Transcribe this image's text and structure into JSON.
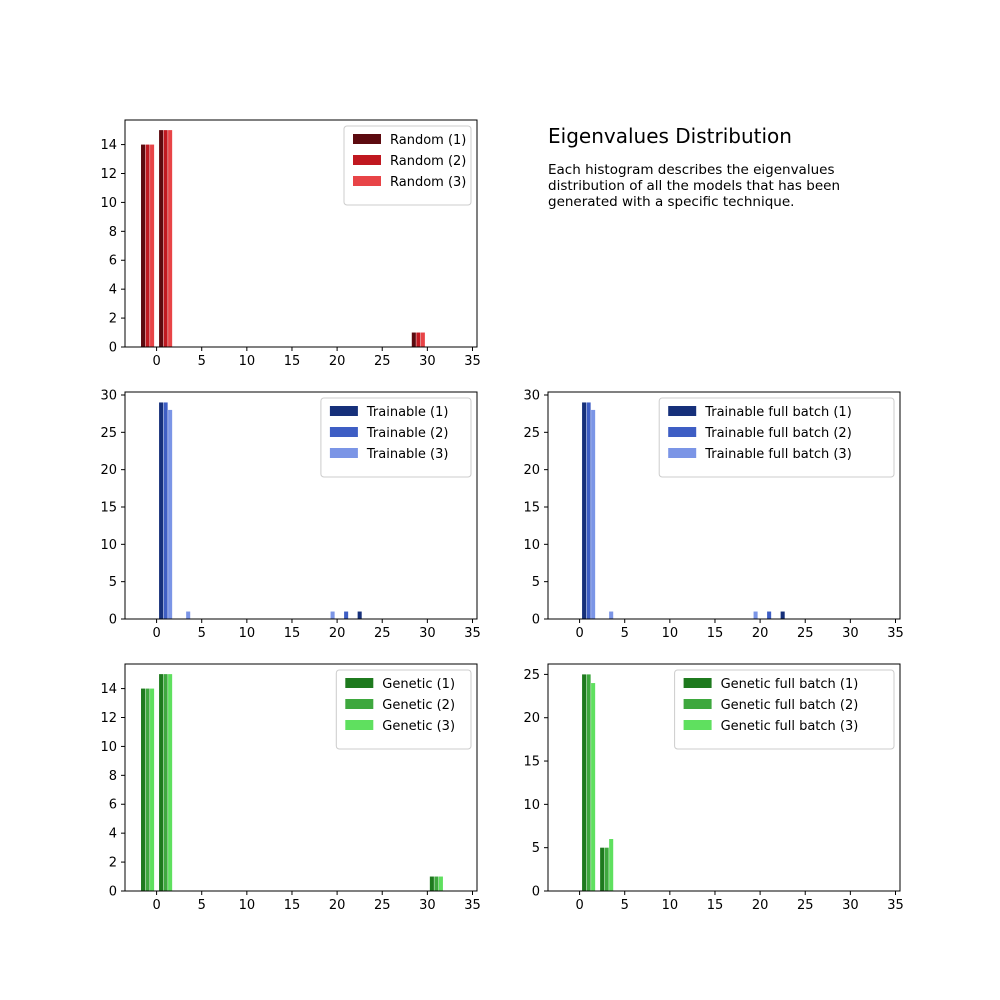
{
  "figure": {
    "title": "Eigenvalues Distribution",
    "description": "Each histogram describes the eigenvalues distribution of all the models that has been generated with a specific technique."
  },
  "chart_data": [
    {
      "type": "bar",
      "id": "random",
      "xlim": [
        -3.5,
        35.5
      ],
      "ylim": [
        0,
        15.7
      ],
      "xticks": [
        0,
        5,
        10,
        15,
        20,
        25,
        30,
        35
      ],
      "yticks": [
        0,
        2,
        4,
        6,
        8,
        10,
        12,
        14
      ],
      "legend_position": "top-right",
      "bar_width": 0.45,
      "series": [
        {
          "name": "Random (1)",
          "color": "#5c0a0f",
          "x": [
            -1.5,
            0.5,
            28.5
          ],
          "values": [
            14,
            15,
            1
          ]
        },
        {
          "name": "Random (2)",
          "color": "#c01820",
          "x": [
            -1.0,
            1.0,
            29.0
          ],
          "values": [
            14,
            15,
            1
          ]
        },
        {
          "name": "Random (3)",
          "color": "#e84447",
          "x": [
            -0.5,
            1.5,
            29.5
          ],
          "values": [
            14,
            15,
            1
          ]
        }
      ]
    },
    {
      "type": "bar",
      "id": "trainable",
      "xlim": [
        -3.5,
        35.5
      ],
      "ylim": [
        0,
        30.4
      ],
      "xticks": [
        0,
        5,
        10,
        15,
        20,
        25,
        30,
        35
      ],
      "yticks": [
        0,
        5,
        10,
        15,
        20,
        25,
        30
      ],
      "legend_position": "top-right",
      "bar_width": 0.45,
      "series": [
        {
          "name": "Trainable (1)",
          "color": "#16307a",
          "x": [
            0.5,
            22.5
          ],
          "values": [
            29,
            1
          ]
        },
        {
          "name": "Trainable (2)",
          "color": "#3e5ec4",
          "x": [
            1.0,
            21.0
          ],
          "values": [
            29,
            1
          ]
        },
        {
          "name": "Trainable (3)",
          "color": "#7b95e6",
          "x": [
            1.5,
            3.5,
            19.5
          ],
          "values": [
            28,
            1,
            1
          ]
        }
      ]
    },
    {
      "type": "bar",
      "id": "trainable-full-batch",
      "xlim": [
        -3.5,
        35.5
      ],
      "ylim": [
        0,
        30.4
      ],
      "xticks": [
        0,
        5,
        10,
        15,
        20,
        25,
        30,
        35
      ],
      "yticks": [
        0,
        5,
        10,
        15,
        20,
        25,
        30
      ],
      "legend_position": "top-right",
      "bar_width": 0.45,
      "series": [
        {
          "name": "Trainable full batch (1)",
          "color": "#16307a",
          "x": [
            0.5,
            22.5
          ],
          "values": [
            29,
            1
          ]
        },
        {
          "name": "Trainable full batch (2)",
          "color": "#3e5ec4",
          "x": [
            1.0,
            21.0
          ],
          "values": [
            29,
            1
          ]
        },
        {
          "name": "Trainable full batch (3)",
          "color": "#7b95e6",
          "x": [
            1.5,
            3.5,
            19.5
          ],
          "values": [
            28,
            1,
            1
          ]
        }
      ]
    },
    {
      "type": "bar",
      "id": "genetic",
      "xlim": [
        -3.5,
        35.5
      ],
      "ylim": [
        0,
        15.7
      ],
      "xticks": [
        0,
        5,
        10,
        15,
        20,
        25,
        30,
        35
      ],
      "yticks": [
        0,
        2,
        4,
        6,
        8,
        10,
        12,
        14
      ],
      "legend_position": "top-right",
      "bar_width": 0.45,
      "series": [
        {
          "name": "Genetic (1)",
          "color": "#1e7a1e",
          "x": [
            -1.5,
            0.5,
            30.5
          ],
          "values": [
            14,
            15,
            1
          ]
        },
        {
          "name": "Genetic (2)",
          "color": "#3ea83e",
          "x": [
            -1.0,
            1.0,
            31.0
          ],
          "values": [
            14,
            15,
            1
          ]
        },
        {
          "name": "Genetic (3)",
          "color": "#5fe05f",
          "x": [
            -0.5,
            1.5,
            31.5
          ],
          "values": [
            14,
            15,
            1
          ]
        }
      ]
    },
    {
      "type": "bar",
      "id": "genetic-full-batch",
      "xlim": [
        -3.5,
        35.5
      ],
      "ylim": [
        0,
        26.2
      ],
      "xticks": [
        0,
        5,
        10,
        15,
        20,
        25,
        30,
        35
      ],
      "yticks": [
        0,
        5,
        10,
        15,
        20,
        25
      ],
      "legend_position": "top-right",
      "bar_width": 0.45,
      "series": [
        {
          "name": "Genetic full batch (1)",
          "color": "#1e7a1e",
          "x": [
            0.5,
            2.5
          ],
          "values": [
            25,
            5
          ]
        },
        {
          "name": "Genetic full batch (2)",
          "color": "#3ea83e",
          "x": [
            1.0,
            3.0
          ],
          "values": [
            25,
            5
          ]
        },
        {
          "name": "Genetic full batch (3)",
          "color": "#5fe05f",
          "x": [
            1.5,
            3.5
          ],
          "values": [
            24,
            6
          ]
        }
      ]
    }
  ]
}
